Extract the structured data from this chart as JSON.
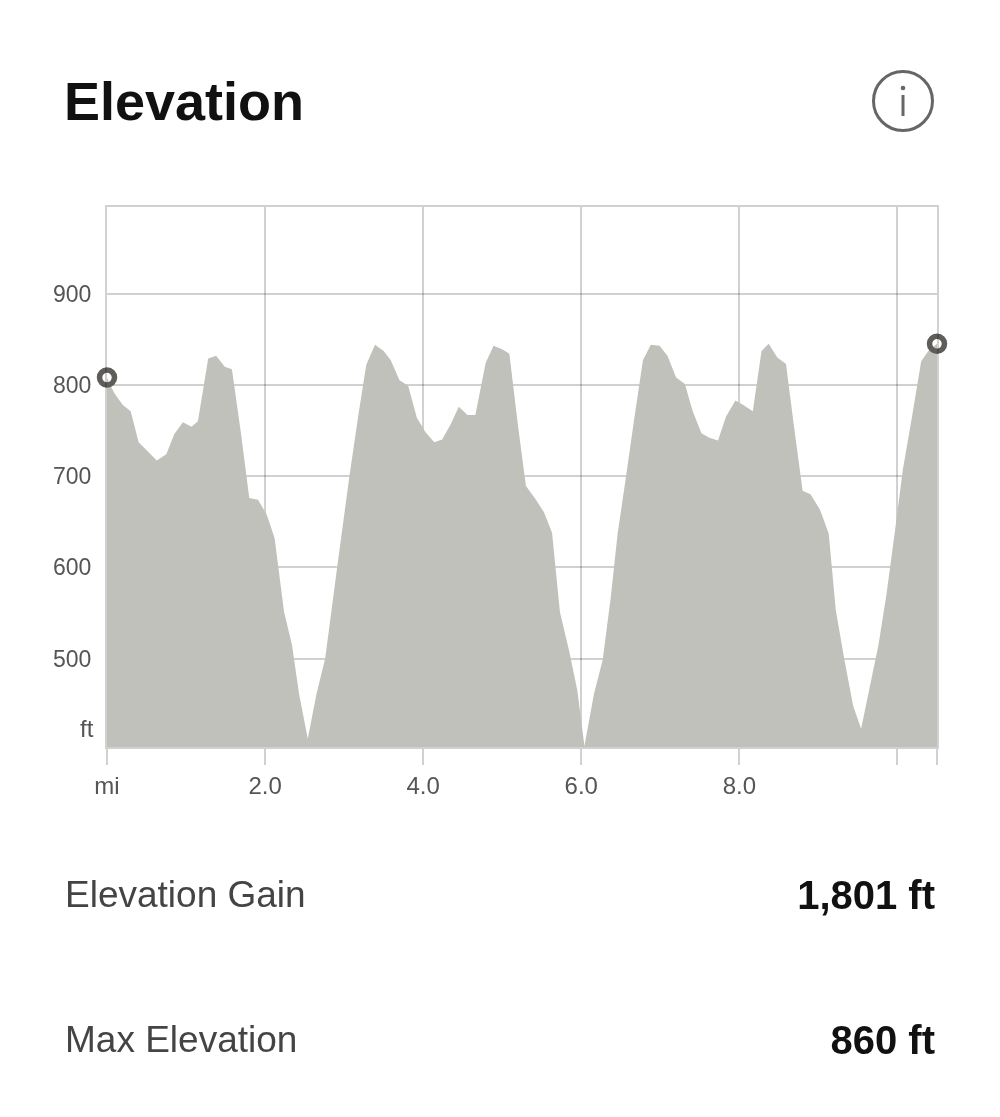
{
  "chart_data": {
    "type": "area",
    "title": "Elevation",
    "ylabel": "ft",
    "xlim": [
      0,
      10.5
    ],
    "xticks": [
      {
        "value": 0,
        "label": "mi"
      },
      {
        "value": 2,
        "label": "2.0"
      },
      {
        "value": 4,
        "label": "4.0"
      },
      {
        "value": 6,
        "label": "6.0"
      },
      {
        "value": 8,
        "label": "8.0"
      },
      {
        "value": 10,
        "label": null
      },
      {
        "value": 10.5,
        "label": null
      }
    ],
    "ylim": [
      403,
      995
    ],
    "yticks": [
      500,
      600,
      700,
      800,
      900
    ],
    "grid": true,
    "series": [
      {
        "color": "#c1c1bb",
        "x": [
          0,
          0.05,
          0.1,
          0.2,
          0.3,
          0.4,
          0.63,
          0.75,
          0.85,
          0.96,
          1.07,
          1.15,
          1.28,
          1.38,
          1.49,
          1.58,
          1.69,
          1.8,
          1.91,
          2.02,
          2.12,
          2.24,
          2.34,
          2.43,
          2.54,
          2.65,
          2.76,
          2.91,
          3.07,
          3.18,
          3.28,
          3.39,
          3.5,
          3.59,
          3.7,
          3.81,
          3.92,
          4.03,
          4.14,
          4.24,
          4.35,
          4.45,
          4.56,
          4.66,
          4.79,
          4.89,
          5,
          5.09,
          5.2,
          5.3,
          5.42,
          5.53,
          5.63,
          5.73,
          5.85,
          5.95,
          6.04,
          6.16,
          6.27,
          6.37,
          6.46,
          6.57,
          6.67,
          6.78,
          6.88,
          6.99,
          7.09,
          7.2,
          7.31,
          7.41,
          7.52,
          7.62,
          7.73,
          7.83,
          7.95,
          8.05,
          8.17,
          8.28,
          8.37,
          8.48,
          8.59,
          8.69,
          8.8,
          8.9,
          9.02,
          9.13,
          9.22,
          9.33,
          9.44,
          9.54,
          9.65,
          9.76,
          9.86,
          9.97,
          10.07,
          10.18,
          10.3,
          10.39,
          10.5
        ],
        "values": [
          808,
          798,
          790,
          778,
          771,
          737,
          717,
          724,
          746,
          759,
          754,
          760,
          829,
          832,
          820,
          817,
          750,
          676,
          674,
          658,
          632,
          551,
          515,
          461,
          412,
          461,
          500,
          599,
          702,
          767,
          822,
          844,
          837,
          827,
          805,
          799,
          764,
          748,
          737,
          740,
          757,
          776,
          767,
          767,
          824,
          843,
          839,
          834,
          755,
          689,
          675,
          660,
          638,
          551,
          507,
          465,
          404,
          461,
          498,
          565,
          637,
          702,
          763,
          827,
          844,
          843,
          832,
          808,
          801,
          771,
          747,
          742,
          739,
          765,
          783,
          778,
          771,
          837,
          845,
          830,
          823,
          755,
          684,
          680,
          663,
          637,
          553,
          498,
          448,
          423,
          469,
          515,
          570,
          641,
          708,
          763,
          826,
          837,
          845
        ]
      },
      {
        "type": "scatter",
        "marker": "circle",
        "color": "#5e5d59",
        "x": [
          0,
          10.5
        ],
        "values": [
          808,
          845
        ]
      }
    ],
    "annotations": [
      "Elevation Gain",
      "1,801 ft",
      "Max Elevation",
      "860 ft"
    ]
  }
}
